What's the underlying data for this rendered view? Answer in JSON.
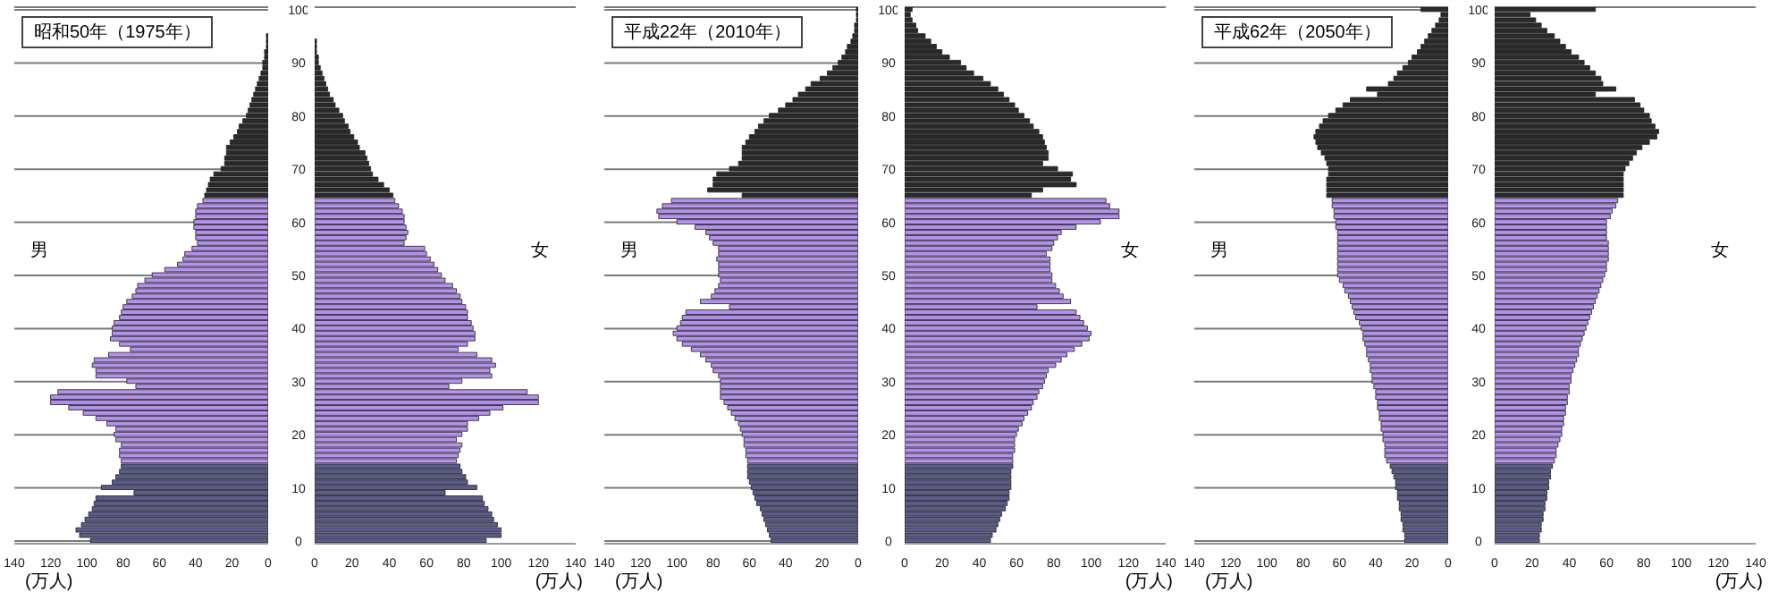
{
  "chart_data": [
    {
      "type": "bar",
      "orientation": "horizontal",
      "title": "昭和50年（1975年）",
      "xlabel": "(万人)",
      "annotations": [
        "男"
      ],
      "grid": "y",
      "xlim": [
        140,
        0
      ],
      "xticks": [
        140,
        120,
        100,
        80,
        60,
        40,
        20,
        0
      ],
      "categories": [
        "100",
        null,
        null,
        null,
        null,
        null,
        null,
        null,
        null,
        null,
        "90",
        null,
        null,
        null,
        null,
        null,
        null,
        null,
        null,
        null,
        "80",
        null,
        null,
        null,
        null,
        null,
        null,
        null,
        null,
        null,
        "70",
        null,
        null,
        null,
        null,
        null,
        null,
        null,
        null,
        null,
        "60",
        null,
        null,
        null,
        null,
        null,
        null,
        null,
        null,
        null,
        "50",
        null,
        null,
        null,
        null,
        null,
        null,
        null,
        null,
        null,
        "40",
        null,
        null,
        null,
        null,
        null,
        null,
        null,
        null,
        null,
        "30",
        null,
        null,
        null,
        null,
        null,
        null,
        null,
        null,
        null,
        "20",
        null,
        null,
        null,
        null,
        null,
        null,
        null,
        null,
        null,
        "10",
        null,
        null,
        null,
        null,
        null,
        null,
        null,
        null,
        null,
        "0"
      ],
      "values": [
        0,
        0,
        0,
        0,
        0,
        1,
        1,
        1,
        2,
        2,
        3,
        3,
        4,
        5,
        6,
        7,
        8,
        9,
        10,
        11,
        12,
        14,
        16,
        17,
        19,
        21,
        23,
        23,
        24,
        24,
        26,
        30,
        32,
        33,
        34,
        35,
        36,
        39,
        40,
        40,
        41,
        41,
        40,
        40,
        39,
        42,
        46,
        47,
        50,
        57,
        64,
        68,
        72,
        73,
        75,
        78,
        80,
        81,
        82,
        85,
        86,
        86,
        87,
        82,
        76,
        88,
        96,
        97,
        95,
        95,
        78,
        73,
        116,
        120,
        120,
        110,
        102,
        95,
        89,
        84,
        85,
        84,
        81,
        82,
        82,
        81,
        81,
        82,
        84,
        86,
        92,
        74,
        95,
        96,
        97,
        99,
        101,
        103,
        106,
        104,
        98
      ],
      "colors": [
        "#2a2a2a",
        "#2a2a2a",
        "#2a2a2a",
        "#2a2a2a",
        "#2a2a2a",
        "#2a2a2a",
        "#2a2a2a",
        "#2a2a2a",
        "#2a2a2a",
        "#2a2a2a",
        "#2a2a2a",
        "#2a2a2a",
        "#2a2a2a",
        "#2a2a2a",
        "#2a2a2a",
        "#2a2a2a",
        "#2a2a2a",
        "#2a2a2a",
        "#2a2a2a",
        "#2a2a2a",
        "#2a2a2a",
        "#2a2a2a",
        "#2a2a2a",
        "#2a2a2a",
        "#2a2a2a",
        "#2a2a2a",
        "#2a2a2a",
        "#2a2a2a",
        "#2a2a2a",
        "#2a2a2a",
        "#2a2a2a",
        "#2a2a2a",
        "#2a2a2a",
        "#2a2a2a",
        "#2a2a2a",
        "#2a2a2a",
        "#b491ec",
        "#b491ec",
        "#b491ec",
        "#b491ec",
        "#b491ec",
        "#b491ec",
        "#b491ec",
        "#b491ec",
        "#b491ec",
        "#b491ec",
        "#b491ec",
        "#b491ec",
        "#b491ec",
        "#b491ec",
        "#b491ec",
        "#b491ec",
        "#b491ec",
        "#b491ec",
        "#b491ec",
        "#b491ec",
        "#b491ec",
        "#b491ec",
        "#b491ec",
        "#b491ec",
        "#b491ec",
        "#b491ec",
        "#b491ec",
        "#b491ec",
        "#b491ec",
        "#b491ec",
        "#b491ec",
        "#b491ec",
        "#b491ec",
        "#b491ec",
        "#b491ec",
        "#b491ec",
        "#b491ec",
        "#b491ec",
        "#b491ec",
        "#b491ec",
        "#b491ec",
        "#b491ec",
        "#b491ec",
        "#b491ec",
        "#b491ec",
        "#b491ec",
        "#b491ec",
        "#b491ec",
        "#b491ec",
        "#b491ec",
        "#5c5c8c",
        "#5c5c8c",
        "#5c5c8c",
        "#5c5c8c",
        "#5c5c8c",
        "#5c5c8c",
        "#5c5c8c",
        "#5c5c8c",
        "#5c5c8c",
        "#5c5c8c",
        "#5c5c8c",
        "#5c5c8c",
        "#5c5c8c",
        "#5c5c8c",
        "#5c5c8c"
      ]
    },
    {
      "type": "bar",
      "orientation": "horizontal",
      "xlabel": "(万人)",
      "annotations": [
        "女"
      ],
      "grid": "y",
      "tick_labels": "x",
      "xlim": [
        0,
        140
      ],
      "xticks": [
        0,
        20,
        40,
        60,
        80,
        100,
        120,
        140
      ],
      "categories": [
        "100",
        null,
        null,
        null,
        null,
        null,
        null,
        null,
        null,
        null,
        "90",
        null,
        null,
        null,
        null,
        null,
        null,
        null,
        null,
        null,
        "80",
        null,
        null,
        null,
        null,
        null,
        null,
        null,
        null,
        null,
        "70",
        null,
        null,
        null,
        null,
        null,
        null,
        null,
        null,
        null,
        "60",
        null,
        null,
        null,
        null,
        null,
        null,
        null,
        null,
        null,
        "50",
        null,
        null,
        null,
        null,
        null,
        null,
        null,
        null,
        null,
        "40",
        null,
        null,
        null,
        null,
        null,
        null,
        null,
        null,
        null,
        "30",
        null,
        null,
        null,
        null,
        null,
        null,
        null,
        null,
        null,
        "20",
        null,
        null,
        null,
        null,
        null,
        null,
        null,
        null,
        null,
        "10",
        null,
        null,
        null,
        null,
        null,
        null,
        null,
        null,
        null,
        "0"
      ],
      "values": [
        0,
        0,
        0,
        0,
        0,
        0,
        1,
        1,
        1,
        2,
        2,
        3,
        4,
        5,
        6,
        7,
        8,
        10,
        11,
        13,
        15,
        16,
        18,
        19,
        21,
        23,
        24,
        27,
        28,
        29,
        30,
        31,
        34,
        37,
        40,
        42,
        43,
        45,
        47,
        48,
        48,
        49,
        50,
        49,
        48,
        59,
        60,
        62,
        64,
        66,
        68,
        70,
        74,
        76,
        78,
        79,
        81,
        82,
        82,
        84,
        85,
        86,
        86,
        82,
        77,
        87,
        95,
        97,
        94,
        95,
        79,
        72,
        114,
        120,
        120,
        101,
        94,
        88,
        82,
        82,
        79,
        76,
        79,
        78,
        77,
        76,
        78,
        79,
        81,
        82,
        87,
        70,
        90,
        91,
        93,
        95,
        96,
        98,
        100,
        100,
        92
      ],
      "colors": [
        "#2a2a2a",
        "#2a2a2a",
        "#2a2a2a",
        "#2a2a2a",
        "#2a2a2a",
        "#2a2a2a",
        "#2a2a2a",
        "#2a2a2a",
        "#2a2a2a",
        "#2a2a2a",
        "#2a2a2a",
        "#2a2a2a",
        "#2a2a2a",
        "#2a2a2a",
        "#2a2a2a",
        "#2a2a2a",
        "#2a2a2a",
        "#2a2a2a",
        "#2a2a2a",
        "#2a2a2a",
        "#2a2a2a",
        "#2a2a2a",
        "#2a2a2a",
        "#2a2a2a",
        "#2a2a2a",
        "#2a2a2a",
        "#2a2a2a",
        "#2a2a2a",
        "#2a2a2a",
        "#2a2a2a",
        "#2a2a2a",
        "#2a2a2a",
        "#2a2a2a",
        "#2a2a2a",
        "#2a2a2a",
        "#2a2a2a",
        "#b491ec",
        "#b491ec",
        "#b491ec",
        "#b491ec",
        "#b491ec",
        "#b491ec",
        "#b491ec",
        "#b491ec",
        "#b491ec",
        "#b491ec",
        "#b491ec",
        "#b491ec",
        "#b491ec",
        "#b491ec",
        "#b491ec",
        "#b491ec",
        "#b491ec",
        "#b491ec",
        "#b491ec",
        "#b491ec",
        "#b491ec",
        "#b491ec",
        "#b491ec",
        "#b491ec",
        "#b491ec",
        "#b491ec",
        "#b491ec",
        "#b491ec",
        "#b491ec",
        "#b491ec",
        "#b491ec",
        "#b491ec",
        "#b491ec",
        "#b491ec",
        "#b491ec",
        "#b491ec",
        "#b491ec",
        "#b491ec",
        "#b491ec",
        "#b491ec",
        "#b491ec",
        "#b491ec",
        "#b491ec",
        "#b491ec",
        "#b491ec",
        "#b491ec",
        "#b491ec",
        "#b491ec",
        "#b491ec",
        "#b491ec",
        "#5c5c8c",
        "#5c5c8c",
        "#5c5c8c",
        "#5c5c8c",
        "#5c5c8c",
        "#5c5c8c",
        "#5c5c8c",
        "#5c5c8c",
        "#5c5c8c",
        "#5c5c8c",
        "#5c5c8c",
        "#5c5c8c",
        "#5c5c8c",
        "#5c5c8c",
        "#5c5c8c"
      ]
    },
    {
      "type": "bar",
      "orientation": "horizontal",
      "title": "平成22年（2010年）",
      "xlabel": "(万人)",
      "annotations": [
        "男"
      ],
      "grid": "y",
      "xlim": [
        140,
        0
      ],
      "xticks": [
        140,
        120,
        100,
        80,
        60,
        40,
        20,
        0
      ],
      "categories": [
        "100",
        null,
        null,
        null,
        null,
        null,
        null,
        null,
        null,
        null,
        "90",
        null,
        null,
        null,
        null,
        null,
        null,
        null,
        null,
        null,
        "80",
        null,
        null,
        null,
        null,
        null,
        null,
        null,
        null,
        null,
        "70",
        null,
        null,
        null,
        null,
        null,
        null,
        null,
        null,
        null,
        "60",
        null,
        null,
        null,
        null,
        null,
        null,
        null,
        null,
        null,
        "50",
        null,
        null,
        null,
        null,
        null,
        null,
        null,
        null,
        null,
        "40",
        null,
        null,
        null,
        null,
        null,
        null,
        null,
        null,
        null,
        "30",
        null,
        null,
        null,
        null,
        null,
        null,
        null,
        null,
        null,
        "20",
        null,
        null,
        null,
        null,
        null,
        null,
        null,
        null,
        null,
        "10",
        null,
        null,
        null,
        null,
        null,
        null,
        null,
        null,
        null,
        "0"
      ],
      "values": [
        1,
        1,
        1,
        2,
        2,
        3,
        4,
        6,
        7,
        9,
        11,
        14,
        17,
        21,
        26,
        29,
        33,
        36,
        40,
        44,
        49,
        52,
        55,
        57,
        60,
        62,
        64,
        64,
        64,
        66,
        71,
        78,
        80,
        80,
        83,
        64,
        103,
        108,
        111,
        110,
        100,
        90,
        84,
        82,
        80,
        77,
        77,
        78,
        77,
        77,
        77,
        76,
        77,
        79,
        81,
        87,
        71,
        95,
        97,
        98,
        100,
        102,
        100,
        97,
        92,
        87,
        84,
        81,
        80,
        77,
        76,
        76,
        76,
        76,
        74,
        72,
        70,
        68,
        66,
        65,
        64,
        63,
        63,
        62,
        62,
        61,
        61,
        61,
        61,
        60,
        59,
        58,
        57,
        56,
        54,
        53,
        52,
        51,
        50,
        49,
        48
      ],
      "colors": [
        "#2a2a2a",
        "#2a2a2a",
        "#2a2a2a",
        "#2a2a2a",
        "#2a2a2a",
        "#2a2a2a",
        "#2a2a2a",
        "#2a2a2a",
        "#2a2a2a",
        "#2a2a2a",
        "#2a2a2a",
        "#2a2a2a",
        "#2a2a2a",
        "#2a2a2a",
        "#2a2a2a",
        "#2a2a2a",
        "#2a2a2a",
        "#2a2a2a",
        "#2a2a2a",
        "#2a2a2a",
        "#2a2a2a",
        "#2a2a2a",
        "#2a2a2a",
        "#2a2a2a",
        "#2a2a2a",
        "#2a2a2a",
        "#2a2a2a",
        "#2a2a2a",
        "#2a2a2a",
        "#2a2a2a",
        "#2a2a2a",
        "#2a2a2a",
        "#2a2a2a",
        "#2a2a2a",
        "#2a2a2a",
        "#2a2a2a",
        "#b491ec",
        "#b491ec",
        "#b491ec",
        "#b491ec",
        "#b491ec",
        "#b491ec",
        "#b491ec",
        "#b491ec",
        "#b491ec",
        "#b491ec",
        "#b491ec",
        "#b491ec",
        "#b491ec",
        "#b491ec",
        "#b491ec",
        "#b491ec",
        "#b491ec",
        "#b491ec",
        "#b491ec",
        "#b491ec",
        "#b491ec",
        "#b491ec",
        "#b491ec",
        "#b491ec",
        "#b491ec",
        "#b491ec",
        "#b491ec",
        "#b491ec",
        "#b491ec",
        "#b491ec",
        "#b491ec",
        "#b491ec",
        "#b491ec",
        "#b491ec",
        "#b491ec",
        "#b491ec",
        "#b491ec",
        "#b491ec",
        "#b491ec",
        "#b491ec",
        "#b491ec",
        "#b491ec",
        "#b491ec",
        "#b491ec",
        "#b491ec",
        "#b491ec",
        "#b491ec",
        "#b491ec",
        "#b491ec",
        "#b491ec",
        "#5c5c8c",
        "#5c5c8c",
        "#5c5c8c",
        "#5c5c8c",
        "#5c5c8c",
        "#5c5c8c",
        "#5c5c8c",
        "#5c5c8c",
        "#5c5c8c",
        "#5c5c8c",
        "#5c5c8c",
        "#5c5c8c",
        "#5c5c8c",
        "#5c5c8c",
        "#5c5c8c"
      ]
    },
    {
      "type": "bar",
      "orientation": "horizontal",
      "xlabel": "(万人)",
      "annotations": [
        "女"
      ],
      "grid": "y",
      "tick_labels": "x",
      "xlim": [
        0,
        140
      ],
      "xticks": [
        0,
        20,
        40,
        60,
        80,
        100,
        120,
        140
      ],
      "categories": [
        "100",
        null,
        null,
        null,
        null,
        null,
        null,
        null,
        null,
        null,
        "90",
        null,
        null,
        null,
        null,
        null,
        null,
        null,
        null,
        null,
        "80",
        null,
        null,
        null,
        null,
        null,
        null,
        null,
        null,
        null,
        "70",
        null,
        null,
        null,
        null,
        null,
        null,
        null,
        null,
        null,
        "60",
        null,
        null,
        null,
        null,
        null,
        null,
        null,
        null,
        null,
        "50",
        null,
        null,
        null,
        null,
        null,
        null,
        null,
        null,
        null,
        "40",
        null,
        null,
        null,
        null,
        null,
        null,
        null,
        null,
        null,
        "30",
        null,
        null,
        null,
        null,
        null,
        null,
        null,
        null,
        null,
        "20",
        null,
        null,
        null,
        null,
        null,
        null,
        null,
        null,
        null,
        "10",
        null,
        null,
        null,
        null,
        null,
        null,
        null,
        null,
        null,
        "0"
      ],
      "values": [
        4,
        3,
        4,
        6,
        7,
        11,
        14,
        17,
        20,
        24,
        30,
        33,
        37,
        42,
        46,
        50,
        53,
        56,
        59,
        61,
        64,
        67,
        69,
        72,
        74,
        75,
        76,
        77,
        77,
        74,
        82,
        90,
        89,
        92,
        74,
        68,
        108,
        110,
        115,
        115,
        105,
        92,
        84,
        82,
        80,
        79,
        76,
        78,
        78,
        78,
        79,
        79,
        81,
        83,
        85,
        89,
        71,
        92,
        94,
        96,
        98,
        100,
        99,
        95,
        91,
        87,
        84,
        81,
        77,
        76,
        75,
        74,
        72,
        71,
        69,
        68,
        66,
        64,
        63,
        61,
        60,
        59,
        59,
        59,
        58,
        58,
        58,
        57,
        57,
        57,
        57,
        56,
        56,
        55,
        54,
        52,
        51,
        50,
        49,
        47,
        46
      ],
      "colors": [
        "#2a2a2a",
        "#2a2a2a",
        "#2a2a2a",
        "#2a2a2a",
        "#2a2a2a",
        "#2a2a2a",
        "#2a2a2a",
        "#2a2a2a",
        "#2a2a2a",
        "#2a2a2a",
        "#2a2a2a",
        "#2a2a2a",
        "#2a2a2a",
        "#2a2a2a",
        "#2a2a2a",
        "#2a2a2a",
        "#2a2a2a",
        "#2a2a2a",
        "#2a2a2a",
        "#2a2a2a",
        "#2a2a2a",
        "#2a2a2a",
        "#2a2a2a",
        "#2a2a2a",
        "#2a2a2a",
        "#2a2a2a",
        "#2a2a2a",
        "#2a2a2a",
        "#2a2a2a",
        "#2a2a2a",
        "#2a2a2a",
        "#2a2a2a",
        "#2a2a2a",
        "#2a2a2a",
        "#2a2a2a",
        "#2a2a2a",
        "#b491ec",
        "#b491ec",
        "#b491ec",
        "#b491ec",
        "#b491ec",
        "#b491ec",
        "#b491ec",
        "#b491ec",
        "#b491ec",
        "#b491ec",
        "#b491ec",
        "#b491ec",
        "#b491ec",
        "#b491ec",
        "#b491ec",
        "#b491ec",
        "#b491ec",
        "#b491ec",
        "#b491ec",
        "#b491ec",
        "#b491ec",
        "#b491ec",
        "#b491ec",
        "#b491ec",
        "#b491ec",
        "#b491ec",
        "#b491ec",
        "#b491ec",
        "#b491ec",
        "#b491ec",
        "#b491ec",
        "#b491ec",
        "#b491ec",
        "#b491ec",
        "#b491ec",
        "#b491ec",
        "#b491ec",
        "#b491ec",
        "#b491ec",
        "#b491ec",
        "#b491ec",
        "#b491ec",
        "#b491ec",
        "#b491ec",
        "#b491ec",
        "#b491ec",
        "#b491ec",
        "#b491ec",
        "#b491ec",
        "#b491ec",
        "#5c5c8c",
        "#5c5c8c",
        "#5c5c8c",
        "#5c5c8c",
        "#5c5c8c",
        "#5c5c8c",
        "#5c5c8c",
        "#5c5c8c",
        "#5c5c8c",
        "#5c5c8c",
        "#5c5c8c",
        "#5c5c8c",
        "#5c5c8c",
        "#5c5c8c",
        "#5c5c8c"
      ]
    },
    {
      "type": "bar",
      "orientation": "horizontal",
      "title": "平成62年（2050年）",
      "xlabel": "(万人)",
      "annotations": [
        "男"
      ],
      "grid": "y",
      "xlim": [
        140,
        0
      ],
      "xticks": [
        140,
        120,
        100,
        80,
        60,
        40,
        20,
        0
      ],
      "categories": [
        "100",
        null,
        null,
        null,
        null,
        null,
        null,
        null,
        null,
        null,
        "90",
        null,
        null,
        null,
        null,
        null,
        null,
        null,
        null,
        null,
        "80",
        null,
        null,
        null,
        null,
        null,
        null,
        null,
        null,
        null,
        "70",
        null,
        null,
        null,
        null,
        null,
        null,
        null,
        null,
        null,
        "60",
        null,
        null,
        null,
        null,
        null,
        null,
        null,
        null,
        null,
        "50",
        null,
        null,
        null,
        null,
        null,
        null,
        null,
        null,
        null,
        "40",
        null,
        null,
        null,
        null,
        null,
        null,
        null,
        null,
        null,
        "30",
        null,
        null,
        null,
        null,
        null,
        null,
        null,
        null,
        null,
        "20",
        null,
        null,
        null,
        null,
        null,
        null,
        null,
        null,
        null,
        "10",
        null,
        null,
        null,
        null,
        null,
        null,
        null,
        null,
        null,
        "0"
      ],
      "values": [
        15,
        4,
        5,
        7,
        9,
        11,
        13,
        15,
        17,
        20,
        22,
        25,
        28,
        30,
        33,
        45,
        39,
        54,
        58,
        62,
        66,
        69,
        71,
        73,
        74,
        73,
        72,
        70,
        68,
        67,
        66,
        66,
        67,
        67,
        67,
        67,
        64,
        64,
        63,
        63,
        62,
        62,
        61,
        61,
        61,
        61,
        61,
        61,
        61,
        61,
        61,
        60,
        58,
        57,
        55,
        54,
        53,
        52,
        51,
        49,
        48,
        47,
        47,
        46,
        45,
        45,
        44,
        43,
        43,
        42,
        42,
        41,
        40,
        40,
        39,
        39,
        38,
        38,
        37,
        37,
        36,
        36,
        35,
        35,
        35,
        34,
        32,
        31,
        30,
        29,
        29,
        28,
        28,
        27,
        27,
        26,
        26,
        25,
        25,
        24,
        24
      ],
      "colors": [
        "#2a2a2a",
        "#2a2a2a",
        "#2a2a2a",
        "#2a2a2a",
        "#2a2a2a",
        "#2a2a2a",
        "#2a2a2a",
        "#2a2a2a",
        "#2a2a2a",
        "#2a2a2a",
        "#2a2a2a",
        "#2a2a2a",
        "#2a2a2a",
        "#2a2a2a",
        "#2a2a2a",
        "#2a2a2a",
        "#2a2a2a",
        "#2a2a2a",
        "#2a2a2a",
        "#2a2a2a",
        "#2a2a2a",
        "#2a2a2a",
        "#2a2a2a",
        "#2a2a2a",
        "#2a2a2a",
        "#2a2a2a",
        "#2a2a2a",
        "#2a2a2a",
        "#2a2a2a",
        "#2a2a2a",
        "#2a2a2a",
        "#2a2a2a",
        "#2a2a2a",
        "#2a2a2a",
        "#2a2a2a",
        "#2a2a2a",
        "#b491ec",
        "#b491ec",
        "#b491ec",
        "#b491ec",
        "#b491ec",
        "#b491ec",
        "#b491ec",
        "#b491ec",
        "#b491ec",
        "#b491ec",
        "#b491ec",
        "#b491ec",
        "#b491ec",
        "#b491ec",
        "#b491ec",
        "#b491ec",
        "#b491ec",
        "#b491ec",
        "#b491ec",
        "#b491ec",
        "#b491ec",
        "#b491ec",
        "#b491ec",
        "#b491ec",
        "#b491ec",
        "#b491ec",
        "#b491ec",
        "#b491ec",
        "#b491ec",
        "#b491ec",
        "#b491ec",
        "#b491ec",
        "#b491ec",
        "#b491ec",
        "#b491ec",
        "#b491ec",
        "#b491ec",
        "#b491ec",
        "#b491ec",
        "#b491ec",
        "#b491ec",
        "#b491ec",
        "#b491ec",
        "#b491ec",
        "#b491ec",
        "#b491ec",
        "#b491ec",
        "#b491ec",
        "#b491ec",
        "#b491ec",
        "#5c5c8c",
        "#5c5c8c",
        "#5c5c8c",
        "#5c5c8c",
        "#5c5c8c",
        "#5c5c8c",
        "#5c5c8c",
        "#5c5c8c",
        "#5c5c8c",
        "#5c5c8c",
        "#5c5c8c",
        "#5c5c8c",
        "#5c5c8c",
        "#5c5c8c",
        "#5c5c8c"
      ]
    },
    {
      "type": "bar",
      "orientation": "horizontal",
      "xlabel": "(万人)",
      "annotations": [
        "女"
      ],
      "grid": "y",
      "tick_labels": "x",
      "xlim": [
        0,
        140
      ],
      "xticks": [
        0,
        20,
        40,
        60,
        80,
        100,
        120,
        140
      ],
      "categories": [
        "100",
        null,
        null,
        null,
        null,
        null,
        null,
        null,
        null,
        null,
        "90",
        null,
        null,
        null,
        null,
        null,
        null,
        null,
        null,
        null,
        "80",
        null,
        null,
        null,
        null,
        null,
        null,
        null,
        null,
        null,
        "70",
        null,
        null,
        null,
        null,
        null,
        null,
        null,
        null,
        null,
        "60",
        null,
        null,
        null,
        null,
        null,
        null,
        null,
        null,
        null,
        "50",
        null,
        null,
        null,
        null,
        null,
        null,
        null,
        null,
        null,
        "40",
        null,
        null,
        null,
        null,
        null,
        null,
        null,
        null,
        null,
        "30",
        null,
        null,
        null,
        null,
        null,
        null,
        null,
        null,
        null,
        "20",
        null,
        null,
        null,
        null,
        null,
        null,
        null,
        null,
        null,
        "10",
        null,
        null,
        null,
        null,
        null,
        null,
        null,
        null,
        null,
        "0"
      ],
      "values": [
        54,
        19,
        22,
        25,
        28,
        32,
        35,
        38,
        41,
        45,
        48,
        51,
        54,
        57,
        58,
        65,
        54,
        75,
        78,
        80,
        83,
        84,
        86,
        88,
        87,
        83,
        79,
        76,
        74,
        72,
        70,
        69,
        69,
        69,
        69,
        69,
        66,
        65,
        63,
        62,
        60,
        60,
        60,
        60,
        61,
        61,
        61,
        61,
        60,
        60,
        59,
        58,
        57,
        56,
        55,
        54,
        53,
        52,
        51,
        50,
        49,
        48,
        47,
        46,
        45,
        45,
        44,
        43,
        42,
        41,
        41,
        40,
        40,
        39,
        39,
        38,
        38,
        37,
        37,
        36,
        36,
        35,
        34,
        33,
        33,
        32,
        31,
        30,
        30,
        29,
        29,
        28,
        28,
        27,
        27,
        26,
        26,
        25,
        25,
        24,
        24
      ],
      "colors": [
        "#2a2a2a",
        "#2a2a2a",
        "#2a2a2a",
        "#2a2a2a",
        "#2a2a2a",
        "#2a2a2a",
        "#2a2a2a",
        "#2a2a2a",
        "#2a2a2a",
        "#2a2a2a",
        "#2a2a2a",
        "#2a2a2a",
        "#2a2a2a",
        "#2a2a2a",
        "#2a2a2a",
        "#2a2a2a",
        "#2a2a2a",
        "#2a2a2a",
        "#2a2a2a",
        "#2a2a2a",
        "#2a2a2a",
        "#2a2a2a",
        "#2a2a2a",
        "#2a2a2a",
        "#2a2a2a",
        "#2a2a2a",
        "#2a2a2a",
        "#2a2a2a",
        "#2a2a2a",
        "#2a2a2a",
        "#2a2a2a",
        "#2a2a2a",
        "#2a2a2a",
        "#2a2a2a",
        "#2a2a2a",
        "#2a2a2a",
        "#b491ec",
        "#b491ec",
        "#b491ec",
        "#b491ec",
        "#b491ec",
        "#b491ec",
        "#b491ec",
        "#b491ec",
        "#b491ec",
        "#b491ec",
        "#b491ec",
        "#b491ec",
        "#b491ec",
        "#b491ec",
        "#b491ec",
        "#b491ec",
        "#b491ec",
        "#b491ec",
        "#b491ec",
        "#b491ec",
        "#b491ec",
        "#b491ec",
        "#b491ec",
        "#b491ec",
        "#b491ec",
        "#b491ec",
        "#b491ec",
        "#b491ec",
        "#b491ec",
        "#b491ec",
        "#b491ec",
        "#b491ec",
        "#b491ec",
        "#b491ec",
        "#b491ec",
        "#b491ec",
        "#b491ec",
        "#b491ec",
        "#b491ec",
        "#b491ec",
        "#b491ec",
        "#b491ec",
        "#b491ec",
        "#b491ec",
        "#b491ec",
        "#b491ec",
        "#b491ec",
        "#b491ec",
        "#b491ec",
        "#b491ec",
        "#5c5c8c",
        "#5c5c8c",
        "#5c5c8c",
        "#5c5c8c",
        "#5c5c8c",
        "#5c5c8c",
        "#5c5c8c",
        "#5c5c8c",
        "#5c5c8c",
        "#5c5c8c",
        "#5c5c8c",
        "#5c5c8c",
        "#5c5c8c",
        "#5c5c8c",
        "#5c5c8c"
      ]
    }
  ]
}
